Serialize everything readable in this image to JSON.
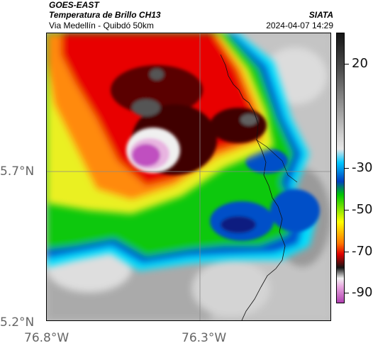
{
  "header": {
    "title": "GOES-EAST",
    "subtitle": "Temperatura de Brillo CH13",
    "route": "Via Medellín - Quibdó 50km",
    "org": "SIATA",
    "timestamp": "2024-04-07 14:29"
  },
  "map": {
    "lat_labels": [
      "5.7°N",
      "5.2°N"
    ],
    "lon_labels": [
      "76.8°W",
      "76.3°W"
    ]
  },
  "colorbar": {
    "tick_labels": [
      "20",
      "-30",
      "-50",
      "-70",
      "-90"
    ],
    "tick_values": [
      20,
      -30,
      -50,
      -70,
      -90
    ],
    "range": [
      -95,
      35
    ],
    "colors": {
      "cold_magenta": "#b040b0",
      "white": "#f2f2f2",
      "black": "#151515",
      "red": "#e00000",
      "orange": "#ff7700",
      "yellow": "#ffff00",
      "green": "#00c800",
      "blue": "#0040c0",
      "cyan": "#00c8ff",
      "gray_light": "#d0d0d0",
      "gray_dark": "#505050"
    }
  }
}
